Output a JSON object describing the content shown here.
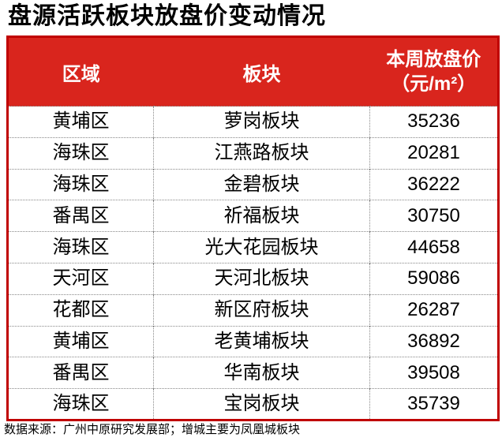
{
  "title": "盘源活跃板块放盘价变动情况",
  "table": {
    "columns": [
      {
        "label": "区域"
      },
      {
        "label": "板块"
      },
      {
        "label": "本周放盘价（元/m²）",
        "line1": "本周放盘价",
        "line2": "（元/m²）"
      }
    ],
    "rows": [
      {
        "region": "黄埔区",
        "sector": "萝岗板块",
        "price": "35236"
      },
      {
        "region": "海珠区",
        "sector": "江燕路板块",
        "price": "20281"
      },
      {
        "region": "海珠区",
        "sector": "金碧板块",
        "price": "36222"
      },
      {
        "region": "番禺区",
        "sector": "祈福板块",
        "price": "30750"
      },
      {
        "region": "海珠区",
        "sector": "光大花园板块",
        "price": "44658"
      },
      {
        "region": "天河区",
        "sector": "天河北板块",
        "price": "59086"
      },
      {
        "region": "花都区",
        "sector": "新区府板块",
        "price": "26287"
      },
      {
        "region": "黄埔区",
        "sector": "老黄埔板块",
        "price": "36892"
      },
      {
        "region": "番禺区",
        "sector": "华南板块",
        "price": "39508"
      },
      {
        "region": "海珠区",
        "sector": "宝岗板块",
        "price": "35739"
      }
    ]
  },
  "footnote": "数据来源：广州中原研究发展部；增城主要为凤凰城板块",
  "colors": {
    "header_bg": "#D9251D",
    "table_border": "#C00000",
    "header_text": "#FFFFFF",
    "body_text": "#000000",
    "divider": "#888888"
  },
  "chart_data": {
    "type": "table",
    "title": "盘源活跃板块放盘价变动情况",
    "columns": [
      "区域",
      "板块",
      "本周放盘价（元/m²）"
    ],
    "rows": [
      [
        "黄埔区",
        "萝岗板块",
        35236
      ],
      [
        "海珠区",
        "江燕路板块",
        20281
      ],
      [
        "海珠区",
        "金碧板块",
        36222
      ],
      [
        "番禺区",
        "祈福板块",
        30750
      ],
      [
        "海珠区",
        "光大花园板块",
        44658
      ],
      [
        "天河区",
        "天河北板块",
        59086
      ],
      [
        "花都区",
        "新区府板块",
        26287
      ],
      [
        "黄埔区",
        "老黄埔板块",
        36892
      ],
      [
        "番禺区",
        "华南板块",
        39508
      ],
      [
        "海珠区",
        "宝岗板块",
        35739
      ]
    ],
    "footnote": "数据来源：广州中原研究发展部；增城主要为凤凰城板块",
    "layout_hints": {
      "header_fill": "#D9251D",
      "header_text_color": "#FFFFFF",
      "outer_border": "red solid",
      "inner_dividers": "gray dotted",
      "price_unit": "元/m²"
    }
  }
}
